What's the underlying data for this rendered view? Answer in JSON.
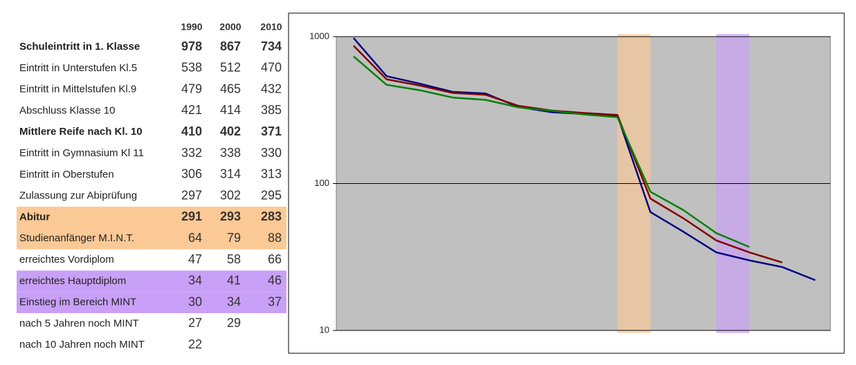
{
  "table": {
    "header": [
      "1990",
      "2000",
      "2010"
    ],
    "rows": [
      {
        "label": "Schuleintritt in 1. Klasse",
        "values": [
          978,
          867,
          734
        ],
        "bold": true
      },
      {
        "label": "Eintritt in Unterstufen Kl.5",
        "values": [
          538,
          512,
          470
        ]
      },
      {
        "label": "Eintritt in Mittelstufen Kl.9",
        "values": [
          479,
          465,
          432
        ]
      },
      {
        "label": "Abschluss Klasse 10",
        "values": [
          421,
          414,
          385
        ]
      },
      {
        "label": "Mittlere Reife nach Kl. 10",
        "values": [
          410,
          402,
          371
        ],
        "bold": true
      },
      {
        "label": "Eintritt in Gymnasium Kl 11",
        "values": [
          332,
          338,
          330
        ]
      },
      {
        "label": "Eintritt in Oberstufen",
        "values": [
          306,
          314,
          313
        ]
      },
      {
        "label": "Zulassung zur Abiprüfung",
        "values": [
          297,
          302,
          295
        ]
      },
      {
        "label": "Abitur",
        "values": [
          291,
          293,
          283
        ],
        "bold": true,
        "highlight": "#fbc995"
      },
      {
        "label": "Studienanfänger M.I.N.T.",
        "values": [
          64,
          79,
          88
        ],
        "highlight": "#fbc995"
      },
      {
        "label": "erreichtes Vordiplom",
        "values": [
          47,
          58,
          66
        ]
      },
      {
        "label": "erreichtes Hauptdiplom",
        "values": [
          34,
          41,
          46
        ],
        "highlight": "#c9a0f8"
      },
      {
        "label": "Einstieg im Bereich MINT",
        "values": [
          30,
          34,
          37
        ],
        "highlight": "#c9a0f8"
      },
      {
        "label": "nach 5 Jahren noch MINT",
        "values": [
          27,
          29
        ]
      },
      {
        "label": "nach 10 Jahren noch MINT",
        "values": [
          22
        ]
      }
    ]
  },
  "chart_data": {
    "type": "line",
    "log_scale": true,
    "ylim": [
      10,
      1000
    ],
    "yticks": [
      10,
      100,
      1000
    ],
    "grid": true,
    "background": "#c0c0c0",
    "bands": [
      {
        "from": 8,
        "to": 9,
        "color": "#fbc995"
      },
      {
        "from": 11,
        "to": 12,
        "color": "#c9a0f8"
      }
    ],
    "series": [
      {
        "color": "#000080",
        "values": [
          978,
          538,
          479,
          421,
          410,
          332,
          306,
          297,
          291,
          64,
          47,
          34,
          30,
          27,
          22
        ]
      },
      {
        "color": "#800000",
        "values": [
          867,
          512,
          465,
          414,
          402,
          338,
          314,
          302,
          293,
          79,
          58,
          41,
          34,
          29
        ]
      },
      {
        "color": "#008000",
        "values": [
          734,
          470,
          432,
          385,
          371,
          330,
          313,
          295,
          283,
          88,
          66,
          46,
          37
        ]
      }
    ]
  }
}
